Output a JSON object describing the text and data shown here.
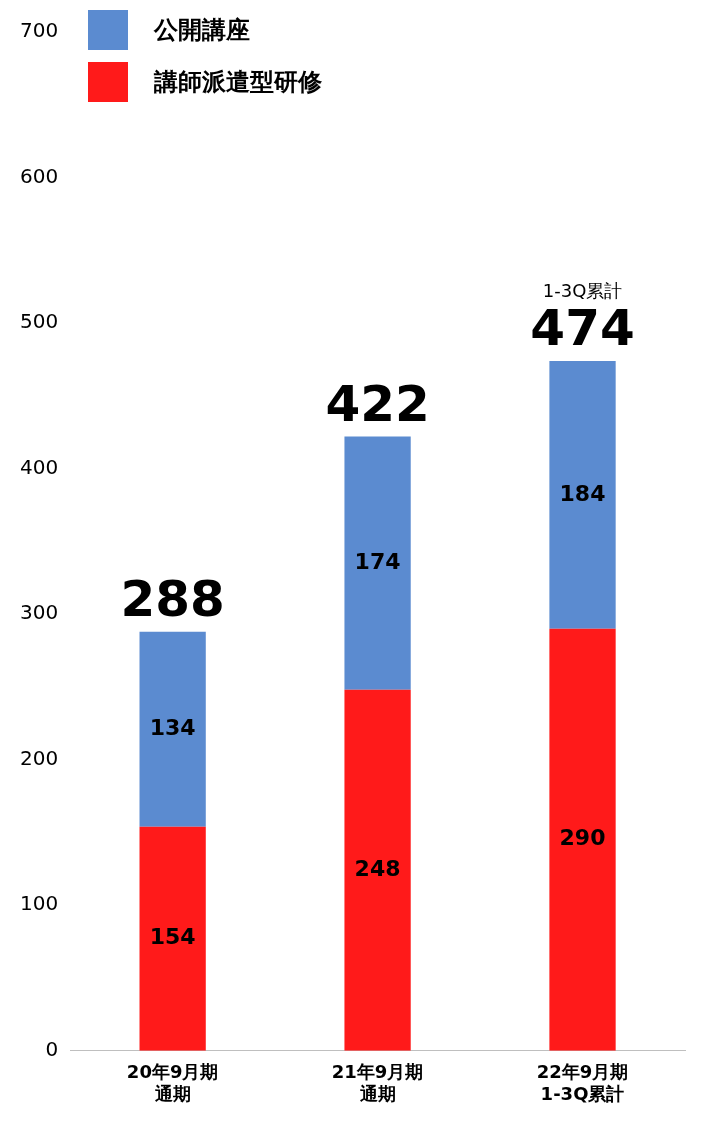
{
  "chart_data": {
    "type": "bar",
    "stacked": true,
    "categories": [
      "20年9月期通期",
      "21年9月期通期",
      "22年9月期\n1-3Q累計"
    ],
    "series": [
      {
        "name": "講師派遣型研修",
        "color": "#ff1a1a",
        "values": [
          154,
          248,
          290
        ]
      },
      {
        "name": "公開講座",
        "color": "#5b8bd0",
        "values": [
          134,
          174,
          184
        ]
      }
    ],
    "ylim": [
      0,
      700
    ],
    "yticks": [
      0,
      100,
      200,
      300,
      400,
      500,
      600,
      700
    ],
    "grid": false,
    "legend": "top left",
    "data_labels": true,
    "totals": [
      "288",
      "422",
      "474"
    ],
    "annotations": [
      "1-3Q累計"
    ]
  }
}
